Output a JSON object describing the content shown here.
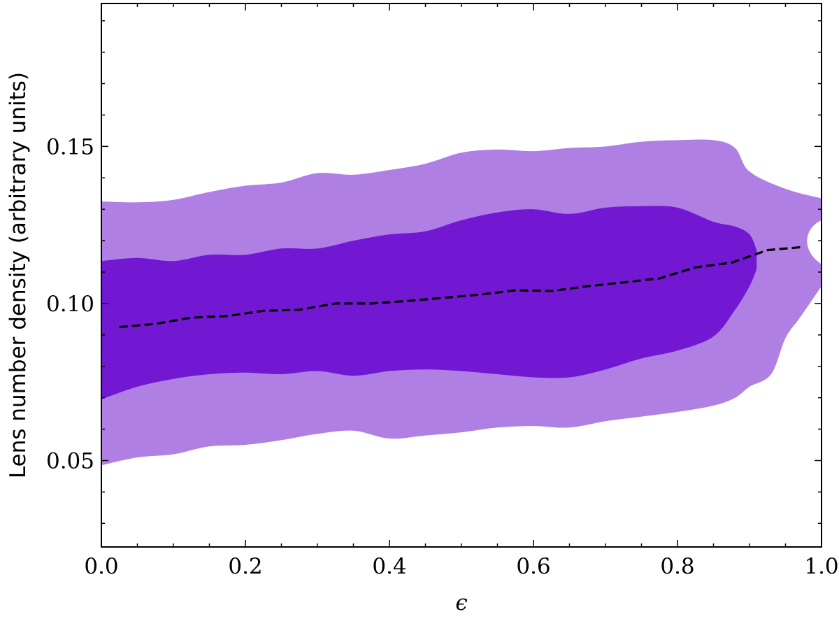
{
  "chart_data": {
    "type": "area",
    "xlabel": "ϵ",
    "ylabel": "Lens number density (arbitrary units)",
    "xlim": [
      0.0,
      1.0
    ],
    "ylim": [
      0.0225,
      0.1955
    ],
    "grid": false,
    "x_ticks": [
      0.0,
      0.2,
      0.4,
      0.6,
      0.8,
      1.0
    ],
    "x_tick_labels": [
      "0.0",
      "0.2",
      "0.4",
      "0.6",
      "0.8",
      "1.0"
    ],
    "y_ticks": [
      0.05,
      0.1,
      0.15
    ],
    "y_tick_labels": [
      "0.05",
      "0.10",
      "0.15"
    ],
    "x_minor_step": 0.05,
    "y_minor_step": 0.01,
    "colors": {
      "outer_band": "#b07fe3",
      "inner_band": "#7318d2",
      "median_line": "#000000"
    },
    "bands": [
      {
        "level": "outer",
        "upper": [
          [
            0.0,
            0.1325
          ],
          [
            0.05,
            0.1322
          ],
          [
            0.1,
            0.133
          ],
          [
            0.15,
            0.1355
          ],
          [
            0.2,
            0.1375
          ],
          [
            0.25,
            0.1385
          ],
          [
            0.3,
            0.1415
          ],
          [
            0.35,
            0.141
          ],
          [
            0.4,
            0.1425
          ],
          [
            0.45,
            0.1445
          ],
          [
            0.5,
            0.148
          ],
          [
            0.55,
            0.149
          ],
          [
            0.6,
            0.1485
          ],
          [
            0.65,
            0.1495
          ],
          [
            0.7,
            0.15
          ],
          [
            0.75,
            0.1515
          ],
          [
            0.8,
            0.152
          ],
          [
            0.85,
            0.152
          ],
          [
            0.88,
            0.1495
          ],
          [
            0.9,
            0.142
          ],
          [
            0.95,
            0.1365
          ],
          [
            1.0,
            0.1335
          ]
        ],
        "lower": [
          [
            0.0,
            0.0485
          ],
          [
            0.05,
            0.051
          ],
          [
            0.1,
            0.052
          ],
          [
            0.15,
            0.0545
          ],
          [
            0.2,
            0.055
          ],
          [
            0.25,
            0.0565
          ],
          [
            0.3,
            0.0585
          ],
          [
            0.35,
            0.0595
          ],
          [
            0.4,
            0.057
          ],
          [
            0.45,
            0.058
          ],
          [
            0.5,
            0.059
          ],
          [
            0.55,
            0.0605
          ],
          [
            0.6,
            0.061
          ],
          [
            0.65,
            0.0605
          ],
          [
            0.7,
            0.0625
          ],
          [
            0.75,
            0.064
          ],
          [
            0.8,
            0.0655
          ],
          [
            0.85,
            0.0675
          ],
          [
            0.88,
            0.07
          ],
          [
            0.9,
            0.0735
          ],
          [
            0.93,
            0.0775
          ],
          [
            0.95,
            0.089
          ],
          [
            0.97,
            0.0955
          ],
          [
            1.0,
            0.1055
          ]
        ]
      },
      {
        "level": "inner",
        "upper": [
          [
            0.0,
            0.1135
          ],
          [
            0.05,
            0.1145
          ],
          [
            0.1,
            0.1135
          ],
          [
            0.15,
            0.1155
          ],
          [
            0.2,
            0.1155
          ],
          [
            0.25,
            0.1175
          ],
          [
            0.3,
            0.1175
          ],
          [
            0.35,
            0.12
          ],
          [
            0.4,
            0.122
          ],
          [
            0.45,
            0.123
          ],
          [
            0.5,
            0.1265
          ],
          [
            0.55,
            0.129
          ],
          [
            0.6,
            0.13
          ],
          [
            0.65,
            0.1285
          ],
          [
            0.7,
            0.1305
          ],
          [
            0.75,
            0.131
          ],
          [
            0.8,
            0.1305
          ],
          [
            0.85,
            0.126
          ],
          [
            0.88,
            0.1245
          ],
          [
            0.9,
            0.122
          ],
          [
            0.91,
            0.117
          ]
        ],
        "lower": [
          [
            0.0,
            0.0695
          ],
          [
            0.05,
            0.0735
          ],
          [
            0.1,
            0.076
          ],
          [
            0.15,
            0.0775
          ],
          [
            0.2,
            0.078
          ],
          [
            0.25,
            0.0775
          ],
          [
            0.3,
            0.0785
          ],
          [
            0.35,
            0.077
          ],
          [
            0.4,
            0.0785
          ],
          [
            0.45,
            0.079
          ],
          [
            0.5,
            0.0785
          ],
          [
            0.55,
            0.0775
          ],
          [
            0.6,
            0.0765
          ],
          [
            0.65,
            0.0765
          ],
          [
            0.7,
            0.079
          ],
          [
            0.75,
            0.0825
          ],
          [
            0.8,
            0.085
          ],
          [
            0.85,
            0.0895
          ],
          [
            0.88,
            0.098
          ],
          [
            0.9,
            0.1055
          ],
          [
            0.91,
            0.111
          ]
        ]
      }
    ],
    "series": [
      {
        "style": "dashed",
        "x": [
          0.025,
          0.075,
          0.125,
          0.175,
          0.225,
          0.275,
          0.325,
          0.375,
          0.425,
          0.475,
          0.525,
          0.575,
          0.625,
          0.675,
          0.725,
          0.775,
          0.825,
          0.875,
          0.925,
          0.975
        ],
        "values": [
          0.0925,
          0.0935,
          0.0955,
          0.096,
          0.0977,
          0.098,
          0.1,
          0.1,
          0.1008,
          0.1018,
          0.1028,
          0.1042,
          0.104,
          0.1055,
          0.1067,
          0.108,
          0.1115,
          0.113,
          0.117,
          0.118
        ]
      }
    ]
  }
}
